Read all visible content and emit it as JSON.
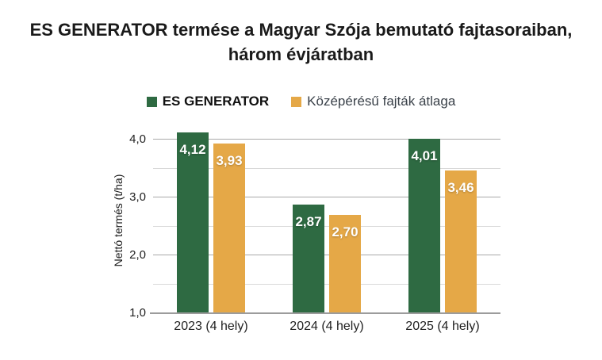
{
  "title": {
    "lines": [
      "ES GENERATOR termése a Magyar Szója bemutató fajtasoraiban,",
      "három évjáratban"
    ]
  },
  "chart_data": {
    "type": "bar",
    "title": "ES GENERATOR termése a Magyar Szója bemutató fajtasoraiban, három évjáratban",
    "categories": [
      "2023 (4 hely)",
      "2024 (4 hely)",
      "2025 (4 hely)"
    ],
    "series": [
      {
        "name": "ES GENERATOR",
        "color": "#2E6A42",
        "values": [
          4.12,
          2.87,
          4.01
        ],
        "labels": [
          "4,12",
          "2,87",
          "4,01"
        ]
      },
      {
        "name": "Középérésű fajták átlaga",
        "color": "#E5A847",
        "values": [
          3.93,
          2.7,
          3.46
        ],
        "labels": [
          "3,93",
          "2,70",
          "3,46"
        ]
      }
    ],
    "xlabel": "",
    "ylabel": "Nettó termés (t/ha)",
    "ylim": [
      1.0,
      4.2
    ],
    "yticks": [
      {
        "value": 1.0,
        "label": "1,0"
      },
      {
        "value": 2.0,
        "label": "2,0"
      },
      {
        "value": 3.0,
        "label": "3,0"
      },
      {
        "value": 4.0,
        "label": "4,0"
      }
    ],
    "gridlines": {
      "major": [
        2.0,
        3.0,
        4.0
      ],
      "minor": [
        1.5,
        2.5,
        3.5
      ]
    },
    "grid": "horizontal every 0.5, labels every 1.0",
    "legend_position": "top-center",
    "bar_value_text_color": "#FFFFFF",
    "colors": {
      "axis_line": "#9c9c9c",
      "gridline_major": "#a9a9a9",
      "gridline_minor": "#d9d9d9"
    }
  }
}
